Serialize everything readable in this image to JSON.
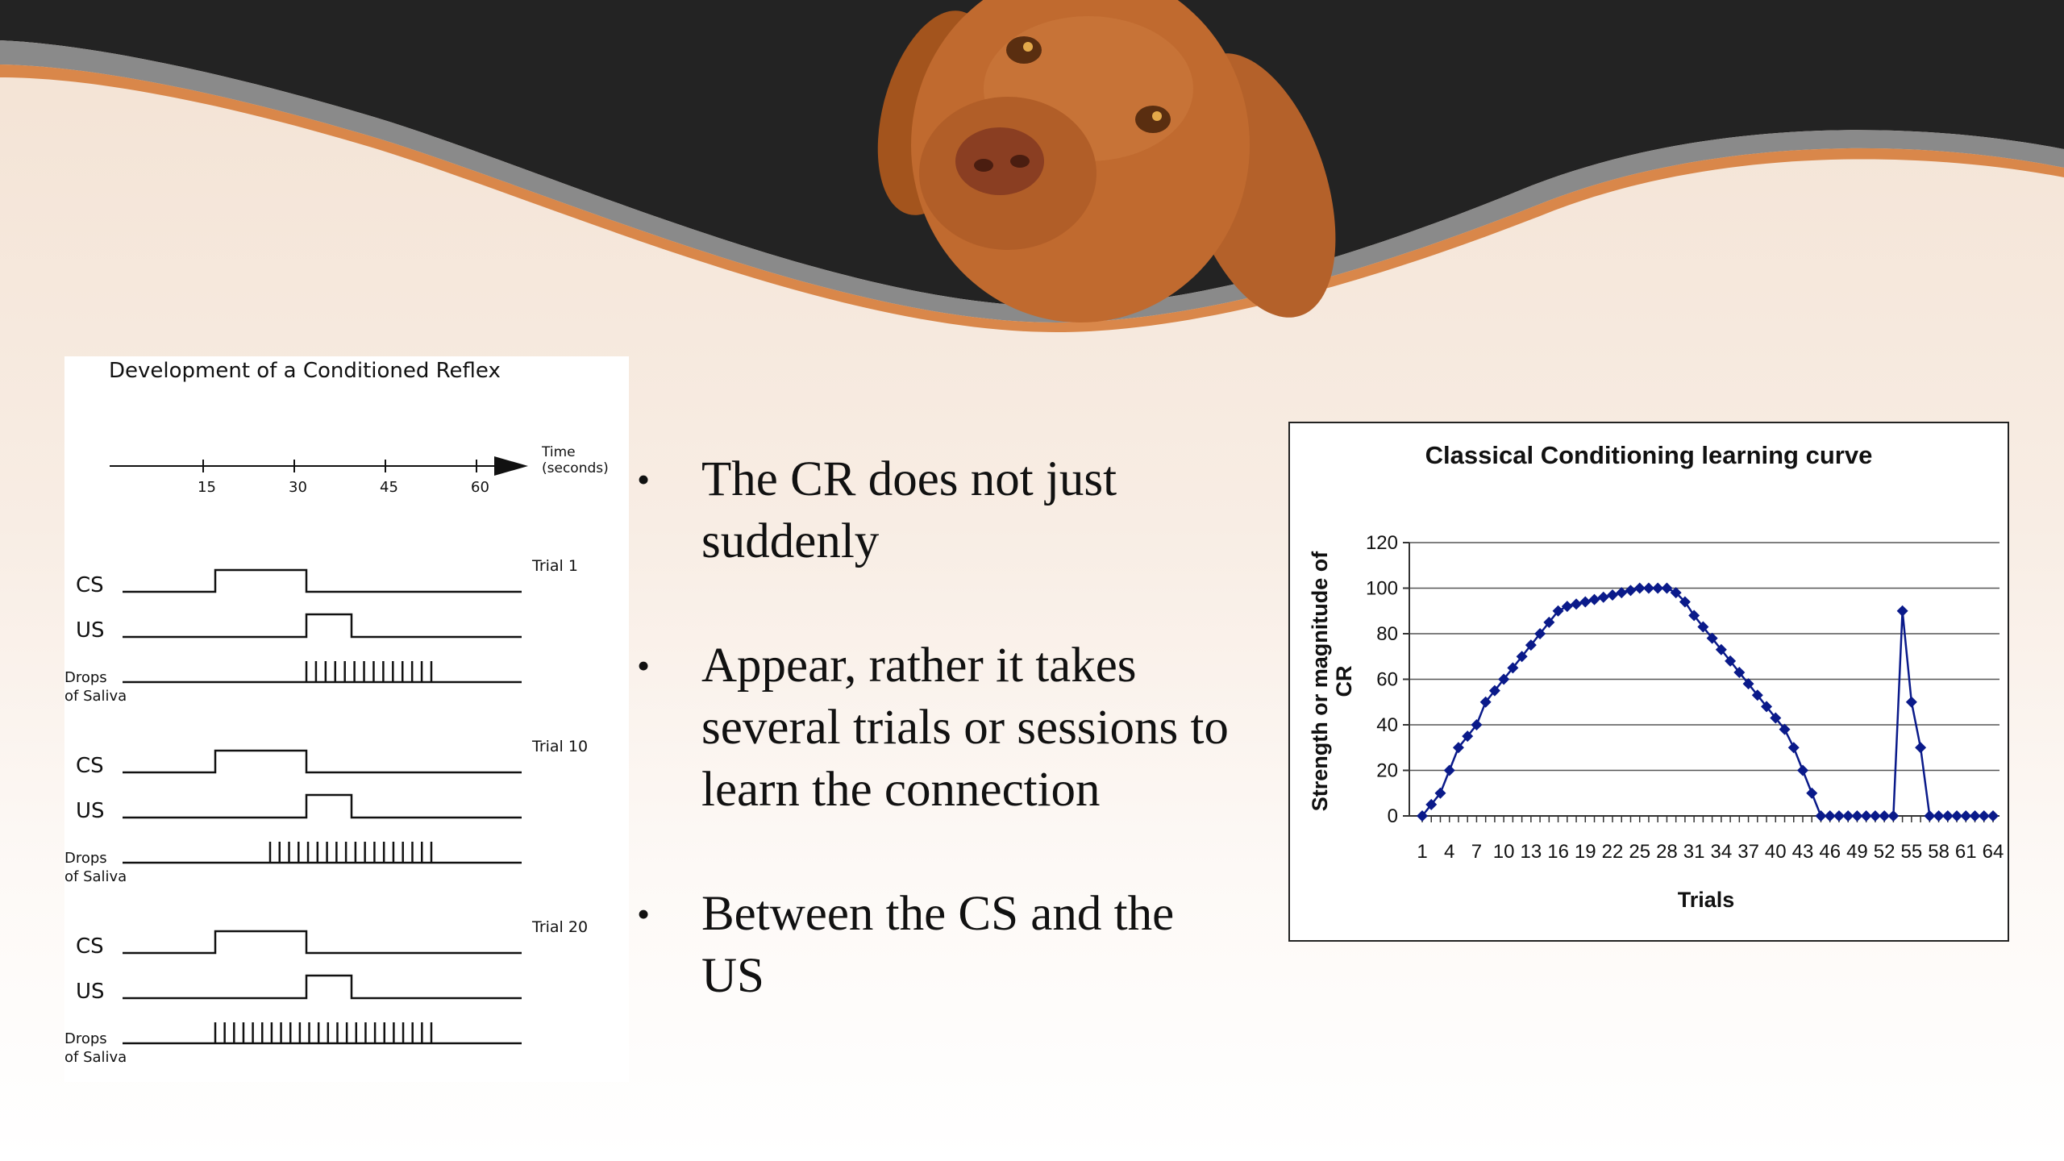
{
  "slide": {
    "colors": {
      "background_top": "#f3e2d3",
      "band_dark": "#232323",
      "band_grey": "#8a8a8a",
      "band_orange": "#d9874a",
      "series": "#0a1a8a"
    },
    "header_image": "dog-photo"
  },
  "reflex_diagram": {
    "title": "Development of a Conditioned Reflex",
    "time_axis": {
      "label_line1": "Time",
      "label_line2": "(seconds)",
      "ticks": [
        "15",
        "30",
        "45",
        "60"
      ]
    },
    "rows": {
      "cs": "CS",
      "us": "US",
      "drops_line1": "Drops",
      "drops_line2": "of Saliva"
    },
    "trials": [
      {
        "label": "Trial 1",
        "drop_count": 14
      },
      {
        "label": "Trial 10",
        "drop_count": 18
      },
      {
        "label": "Trial 20",
        "drop_count": 24
      }
    ]
  },
  "bullets": [
    "The CR does not just suddenly",
    "Appear, rather it takes several trials or sessions to learn the connection",
    "Between the CS and the US"
  ],
  "chart_data": {
    "type": "line",
    "title": "Classical Conditioning learning curve",
    "xlabel": "Trials",
    "ylabel": "Strength or magnitude of CR",
    "ylim": [
      0,
      120
    ],
    "yticks": [
      0,
      20,
      40,
      60,
      80,
      100,
      120
    ],
    "xlim": [
      1,
      64
    ],
    "xtick_labels": [
      "1",
      "4",
      "7",
      "10",
      "13",
      "16",
      "19",
      "22",
      "25",
      "28",
      "31",
      "34",
      "37",
      "40",
      "43",
      "46",
      "49",
      "52",
      "55",
      "58",
      "61",
      "64"
    ],
    "grid": true,
    "marker": "diamond",
    "x": [
      1,
      2,
      3,
      4,
      5,
      6,
      7,
      8,
      9,
      10,
      11,
      12,
      13,
      14,
      15,
      16,
      17,
      18,
      19,
      20,
      21,
      22,
      23,
      24,
      25,
      26,
      27,
      28,
      29,
      30,
      31,
      32,
      33,
      34,
      35,
      36,
      37,
      38,
      39,
      40,
      41,
      42,
      43,
      44,
      45,
      46,
      47,
      48,
      49,
      50,
      51,
      52,
      53,
      54,
      55,
      56,
      57,
      58,
      59,
      60,
      61,
      62,
      63,
      64
    ],
    "y": [
      0,
      5,
      10,
      20,
      30,
      35,
      40,
      50,
      55,
      60,
      65,
      70,
      75,
      80,
      85,
      90,
      92,
      93,
      94,
      95,
      96,
      97,
      98,
      99,
      100,
      100,
      100,
      100,
      98,
      94,
      88,
      83,
      78,
      73,
      68,
      63,
      58,
      53,
      48,
      43,
      38,
      30,
      20,
      10,
      0,
      0,
      0,
      0,
      0,
      0,
      0,
      0,
      0,
      90,
      50,
      30,
      0,
      0,
      0,
      0,
      0,
      0,
      0,
      0
    ]
  }
}
